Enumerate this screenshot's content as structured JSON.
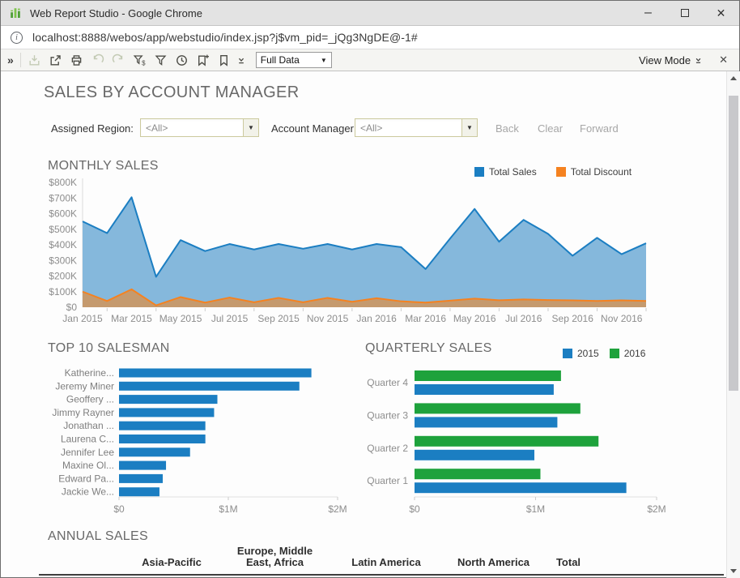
{
  "window": {
    "title": "Web Report Studio - Google Chrome"
  },
  "address_bar": {
    "url": "localhost:8888/webos/app/webstudio/index.jsp?j$vm_pid=_jQg3NgDE@-1#"
  },
  "icons": {
    "app": "equalizer-icon",
    "info_letter": "i",
    "overflow": "»",
    "minimize": "–",
    "close": "✕",
    "dropdown_arrow": "▼",
    "toolbar": [
      "download-icon",
      "export-icon",
      "print-icon",
      "undo-icon",
      "redo-icon",
      "filter-values-icon",
      "filter-icon",
      "history-icon",
      "bookmark-add-icon",
      "bookmark-icon"
    ]
  },
  "toolbar": {
    "dataset_value": "Full Data",
    "view_mode_label": "View Mode"
  },
  "report": {
    "title": "SALES BY ACCOUNT MANAGER",
    "filters": {
      "region_label": "Assigned Region:",
      "region_value": "<All>",
      "manager_label": "Account Manager:",
      "manager_value": "<All>"
    },
    "nav_buttons": {
      "back": "Back",
      "clear": "Clear",
      "forward": "Forward"
    }
  },
  "sections": {
    "monthly": "MONTHLY SALES",
    "top10": "TOP 10 SALESMAN",
    "quarterly": "QUARTERLY SALES",
    "annual": "ANNUAL SALES"
  },
  "colors": {
    "blue": "#1b7ec2",
    "blue_fill": "#85b8dc",
    "orange": "#f58220",
    "discount_fill": "#c59a6e",
    "green": "#1ea23c"
  },
  "chart_data": [
    {
      "type": "area",
      "title": "MONTHLY SALES",
      "unit": "$K",
      "x": [
        "Jan 2015",
        "Feb 2015",
        "Mar 2015",
        "Apr 2015",
        "May 2015",
        "Jun 2015",
        "Jul 2015",
        "Aug 2015",
        "Sep 2015",
        "Oct 2015",
        "Nov 2015",
        "Dec 2015",
        "Jan 2016",
        "Feb 2016",
        "Mar 2016",
        "Apr 2016",
        "May 2016",
        "Jun 2016",
        "Jul 2016",
        "Aug 2016",
        "Sep 2016",
        "Oct 2016",
        "Nov 2016",
        "Dec 2016"
      ],
      "x_tick_step": 2,
      "ylim": [
        0,
        800
      ],
      "y_ticks": [
        "$800K",
        "$700K",
        "$600K",
        "$500K",
        "$400K",
        "$300K",
        "$200K",
        "$100K",
        "$0"
      ],
      "legend_position": "top-right",
      "series": [
        {
          "name": "Total Sales",
          "color": "#1b7ec2",
          "fill": "#85b8dc",
          "values": [
            550,
            475,
            705,
            195,
            430,
            360,
            405,
            370,
            405,
            375,
            405,
            370,
            405,
            385,
            245,
            440,
            630,
            420,
            560,
            470,
            330,
            445,
            340,
            410
          ]
        },
        {
          "name": "Total Discount",
          "color": "#f58220",
          "fill": "#c59a6e",
          "values": [
            100,
            40,
            115,
            12,
            65,
            30,
            62,
            32,
            60,
            32,
            60,
            35,
            58,
            38,
            30,
            42,
            55,
            45,
            50,
            46,
            44,
            40,
            44,
            40
          ]
        }
      ]
    },
    {
      "type": "bar",
      "title": "TOP 10 SALESMAN",
      "orientation": "horizontal",
      "unit": "$M",
      "categories": [
        "Katherine...",
        "Jeremy Miner",
        "Geoffery ...",
        "Jimmy Rayner",
        "Jonathan ...",
        "Laurena C...",
        "Jennifer Lee",
        "Maxine Ol...",
        "Edward Pa...",
        "Jackie We..."
      ],
      "values": [
        1.76,
        1.65,
        0.9,
        0.87,
        0.79,
        0.79,
        0.65,
        0.43,
        0.4,
        0.37
      ],
      "color": "#1b7ec2",
      "xlim": [
        0,
        2
      ],
      "x_ticks": [
        "$0",
        "$1M",
        "$2M"
      ]
    },
    {
      "type": "bar",
      "title": "QUARTERLY SALES",
      "orientation": "horizontal",
      "grouped": true,
      "unit": "$M",
      "categories": [
        "Quarter 4",
        "Quarter 3",
        "Quarter 2",
        "Quarter 1"
      ],
      "series": [
        {
          "name": "2016",
          "color": "#1ea23c",
          "values": [
            1.21,
            1.37,
            1.52,
            1.04
          ]
        },
        {
          "name": "2015",
          "color": "#1b7ec2",
          "values": [
            1.15,
            1.18,
            0.99,
            1.75
          ]
        }
      ],
      "legend": [
        "2015",
        "2016"
      ],
      "legend_position": "top-right",
      "xlim": [
        0,
        2
      ],
      "x_ticks": [
        "$0",
        "$1M",
        "$2M"
      ]
    }
  ],
  "annual_table": {
    "columns": [
      "Asia-Pacific",
      "Europe, Middle East, Africa",
      "Latin America",
      "North America",
      "Total"
    ]
  }
}
